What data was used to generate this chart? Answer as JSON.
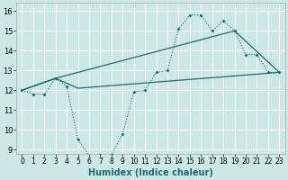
{
  "xlabel": "Humidex (Indice chaleur)",
  "bg_color": "#cce8e5",
  "grid_color": "#ffffff",
  "line_color": "#1a6b6b",
  "xlim": [
    -0.5,
    23.5
  ],
  "ylim": [
    8.8,
    16.4
  ],
  "xticks": [
    0,
    1,
    2,
    3,
    4,
    5,
    6,
    7,
    8,
    9,
    10,
    11,
    12,
    13,
    14,
    15,
    16,
    17,
    18,
    19,
    20,
    21,
    22,
    23
  ],
  "yticks": [
    9,
    10,
    11,
    12,
    13,
    14,
    15,
    16
  ],
  "series1_x": [
    0,
    1,
    2,
    3,
    4,
    5,
    6,
    7,
    8,
    9,
    10,
    11,
    12,
    13,
    14,
    15,
    16,
    17,
    18,
    19,
    20,
    21,
    22,
    23
  ],
  "series1_y": [
    12.0,
    11.8,
    11.8,
    12.6,
    12.2,
    9.5,
    8.7,
    8.75,
    8.75,
    9.8,
    11.9,
    12.0,
    12.9,
    13.0,
    15.1,
    15.8,
    15.8,
    15.0,
    15.5,
    15.0,
    13.8,
    13.8,
    12.9,
    12.9
  ],
  "series2_x": [
    0,
    3,
    5,
    23
  ],
  "series2_y": [
    12.0,
    12.6,
    12.1,
    12.9
  ],
  "series3_x": [
    0,
    3,
    19,
    23
  ],
  "series3_y": [
    12.0,
    12.6,
    15.0,
    12.9
  ]
}
